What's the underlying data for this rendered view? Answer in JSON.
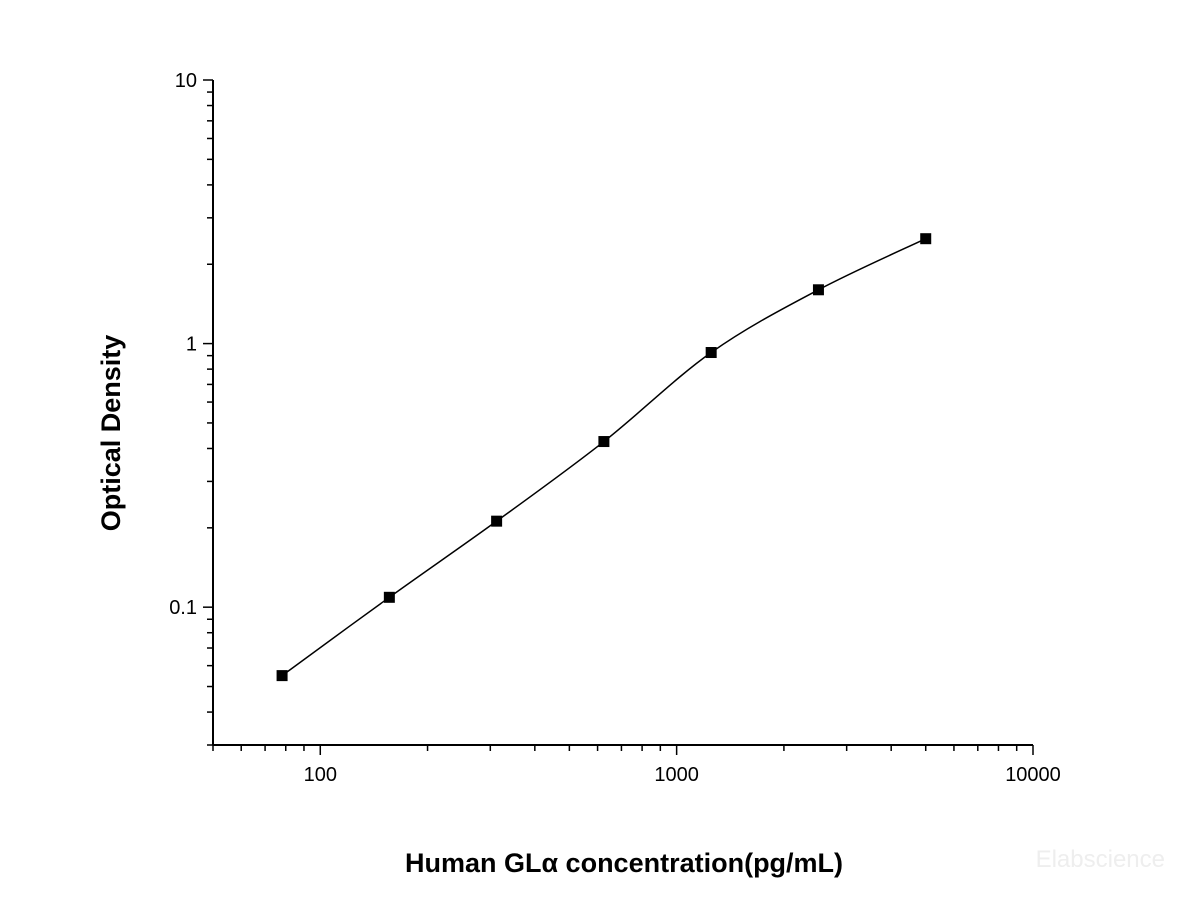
{
  "chart_data": {
    "type": "scatter",
    "title": "",
    "xlabel": "Human GLα  concentration(pg/mL)",
    "ylabel": "Optical Density",
    "x_scale": "log",
    "y_scale": "log",
    "xlim": [
      50,
      10000
    ],
    "ylim": [
      0.03,
      10
    ],
    "x_ticks": [
      100,
      1000,
      10000
    ],
    "x_tick_labels": [
      "100",
      "1000",
      "10000"
    ],
    "y_ticks": [
      0.1,
      1,
      10
    ],
    "y_tick_labels": [
      "0.1",
      "1",
      "10"
    ],
    "grid": false,
    "series": [
      {
        "marker": "square",
        "color": "#000000",
        "x": [
          78.13,
          156.25,
          312.5,
          625,
          1250,
          2500,
          5000
        ],
        "y": [
          0.055,
          0.109,
          0.212,
          0.425,
          0.925,
          1.6,
          2.5
        ]
      }
    ],
    "fit_curve": {
      "style": "line",
      "color": "#000000"
    }
  },
  "watermark": "Elabscience"
}
